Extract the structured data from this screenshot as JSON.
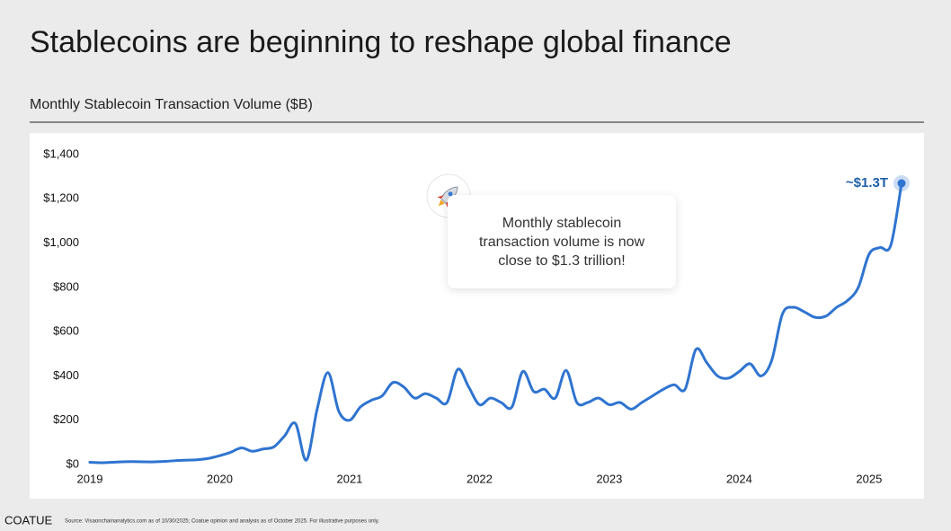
{
  "chart_data": {
    "type": "line",
    "title": "Stablecoins are beginning to reshape global finance",
    "subtitle": "Monthly Stablecoin Transaction Volume ($B)",
    "annotation": "Monthly stablecoin transaction volume is now close to $1.3 trillion!",
    "end_label": "~$1.3T",
    "source": "Source: Visaonchainanalytics.com as of 10/30/2025; Coatue opinion and analysis as of October 2025. For illustrative purposes only.",
    "brand": "COATUE",
    "x": [
      2019,
      2019.083,
      2019.167,
      2019.25,
      2019.333,
      2019.417,
      2019.5,
      2019.583,
      2019.667,
      2019.75,
      2019.833,
      2019.917,
      2020,
      2020.083,
      2020.167,
      2020.25,
      2020.333,
      2020.417,
      2020.5,
      2020.583,
      2020.667,
      2020.75,
      2020.833,
      2020.917,
      2021,
      2021.083,
      2021.167,
      2021.25,
      2021.333,
      2021.417,
      2021.5,
      2021.583,
      2021.667,
      2021.75,
      2021.833,
      2021.917,
      2022,
      2022.083,
      2022.167,
      2022.25,
      2022.333,
      2022.417,
      2022.5,
      2022.583,
      2022.667,
      2022.75,
      2022.833,
      2022.917,
      2023,
      2023.083,
      2023.167,
      2023.25,
      2023.333,
      2023.417,
      2023.5,
      2023.583,
      2023.667,
      2023.75,
      2023.833,
      2023.917,
      2024,
      2024.083,
      2024.167,
      2024.25,
      2024.333,
      2024.417,
      2024.5,
      2024.583,
      2024.667,
      2024.75,
      2024.833,
      2024.917,
      2025,
      2025.083,
      2025.167,
      2025.25
    ],
    "series": [
      {
        "name": "Monthly Stablecoin Transaction Volume",
        "color": "#2f74d0",
        "values": [
          10,
          8,
          10,
          12,
          13,
          12,
          12,
          14,
          18,
          20,
          22,
          28,
          40,
          55,
          75,
          60,
          70,
          80,
          130,
          185,
          20,
          250,
          415,
          240,
          200,
          260,
          290,
          310,
          370,
          350,
          300,
          320,
          300,
          280,
          430,
          350,
          270,
          300,
          280,
          260,
          420,
          330,
          340,
          300,
          425,
          280,
          280,
          300,
          270,
          280,
          250,
          280,
          310,
          340,
          360,
          340,
          520,
          460,
          400,
          390,
          420,
          455,
          400,
          470,
          680,
          710,
          690,
          665,
          670,
          710,
          740,
          800,
          950,
          980,
          990,
          1270
        ]
      }
    ],
    "xlim": [
      2019,
      2025.25
    ],
    "xticks": [
      2019,
      2020,
      2021,
      2022,
      2023,
      2024,
      2025
    ],
    "ylim": [
      0,
      1400
    ],
    "yticks": [
      {
        "value": 0,
        "label": "$0"
      },
      {
        "value": 200,
        "label": "$200"
      },
      {
        "value": 400,
        "label": "$400"
      },
      {
        "value": 600,
        "label": "$600"
      },
      {
        "value": 800,
        "label": "$800"
      },
      {
        "value": 1000,
        "label": "$1,000"
      },
      {
        "value": 1200,
        "label": "$1,200"
      },
      {
        "value": 1400,
        "label": "$1,400"
      }
    ]
  }
}
